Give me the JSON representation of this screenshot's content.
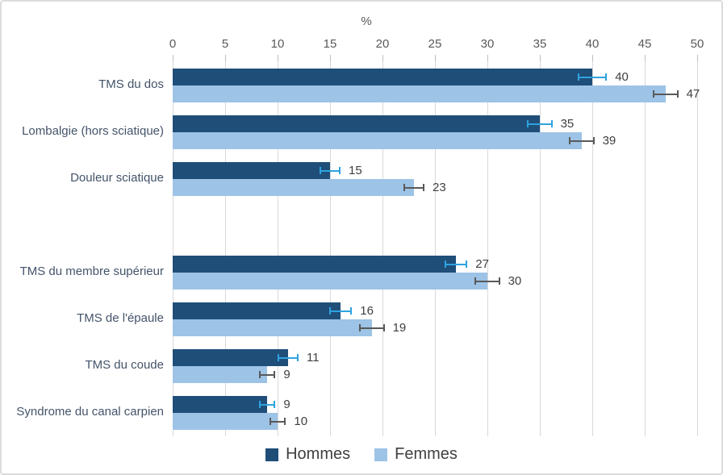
{
  "chart_data": {
    "type": "bar",
    "orientation": "horizontal",
    "title": "",
    "xlabel": "%",
    "ylabel": "",
    "xlim": [
      0,
      50
    ],
    "x_ticks": [
      0,
      5,
      10,
      15,
      20,
      25,
      30,
      35,
      40,
      45,
      50
    ],
    "grid": true,
    "legend_position": "bottom",
    "categories": [
      "TMS du dos",
      "Lombalgie (hors sciatique)",
      "Douleur sciatique",
      "TMS du membre supérieur",
      "TMS de l'épaule",
      "TMS du coude",
      "Syndrome du canal carpien"
    ],
    "gap_after_category_index": 2,
    "series": [
      {
        "name": "Hommes",
        "color": "#1f4e79",
        "error_bar_color": "#2ea3df",
        "values": [
          40,
          35,
          15,
          27,
          16,
          11,
          9
        ],
        "errors": [
          1.4,
          1.2,
          1.0,
          1.1,
          1.1,
          1.0,
          0.8
        ]
      },
      {
        "name": "Femmes",
        "color": "#9dc3e6",
        "error_bar_color": "#595959",
        "values": [
          47,
          39,
          23,
          30,
          19,
          9,
          10
        ],
        "errors": [
          1.2,
          1.2,
          1.0,
          1.2,
          1.2,
          0.8,
          0.8
        ]
      }
    ]
  },
  "colors": {
    "gridline": "#d9d9d9",
    "tick_mark": "#bfbfbf",
    "axis_text": "#595959",
    "category_text": "#44546a",
    "value_text": "#404040",
    "figure_border": "#dcdcdc"
  }
}
